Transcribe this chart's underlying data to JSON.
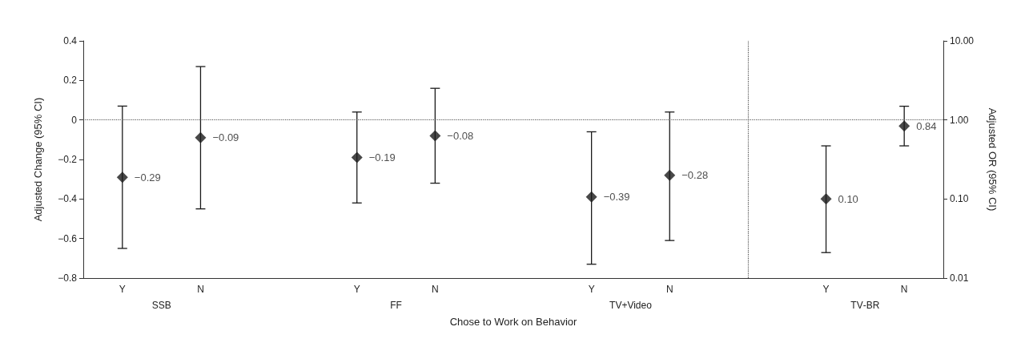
{
  "chart_data": {
    "type": "scatter",
    "xlabel": "Chose to Work on Behavior",
    "ylabel": "Adjusted Change (95% CI)",
    "y2label": "Adjusted OR (95% CI)",
    "categories": [
      "Y",
      "N",
      null,
      "Y",
      "N",
      null,
      "Y",
      "N",
      null,
      "Y",
      "N"
    ],
    "ylim": [
      -0.8,
      0.4
    ],
    "yticks": [
      {
        "value": -0.8,
        "label": "−0.8"
      },
      {
        "value": -0.6,
        "label": "−0.6"
      },
      {
        "value": -0.4,
        "label": "−0.4"
      },
      {
        "value": -0.2,
        "label": "−0.2"
      },
      0,
      0.2,
      0.4
    ],
    "y2lim": [
      0.01,
      10
    ],
    "y2ticks": [
      {
        "value": 0.01,
        "label": "0.01"
      },
      {
        "value": 0.1,
        "label": "0.10"
      },
      {
        "value": 1,
        "label": "1.00"
      },
      {
        "value": 10,
        "label": "10.00"
      }
    ],
    "log": "y2",
    "marker": "diamond",
    "series": [
      {
        "color": "#1a1a1a",
        "values": [
          -0.29,
          -0.09,
          null,
          -0.19,
          -0.08,
          null,
          -0.39,
          -0.28,
          null,
          null,
          null
        ],
        "errors": [
          [
            -0.65,
            0.07
          ],
          [
            -0.45,
            0.27
          ],
          null,
          [
            -0.42,
            0.04
          ],
          [
            -0.32,
            0.16
          ],
          null,
          [
            -0.73,
            -0.06
          ],
          [
            -0.61,
            0.04
          ],
          null,
          null,
          null
        ],
        "value_labels": [
          "−0.29",
          "−0.09",
          null,
          "−0.19",
          "−0.08",
          null,
          "−0.39",
          "−0.28",
          null,
          null,
          null
        ]
      },
      {
        "color": "#1a1a1a",
        "axis": "y2",
        "values": [
          null,
          null,
          null,
          null,
          null,
          null,
          null,
          null,
          null,
          0.1,
          0.84
        ],
        "errors": [
          null,
          null,
          null,
          null,
          null,
          null,
          null,
          null,
          null,
          [
            0.021,
            0.47
          ],
          [
            0.47,
            1.49
          ]
        ],
        "value_labels": [
          null,
          null,
          null,
          null,
          null,
          null,
          null,
          null,
          null,
          "0.10",
          "0.84"
        ]
      }
    ],
    "ref_lines": [
      {
        "axis": "y",
        "value": 0,
        "line_style": "dotted",
        "color": "#555555"
      }
    ],
    "annotations": [
      "SSB",
      "FF",
      "TV+Video",
      "TV‑BR"
    ]
  }
}
